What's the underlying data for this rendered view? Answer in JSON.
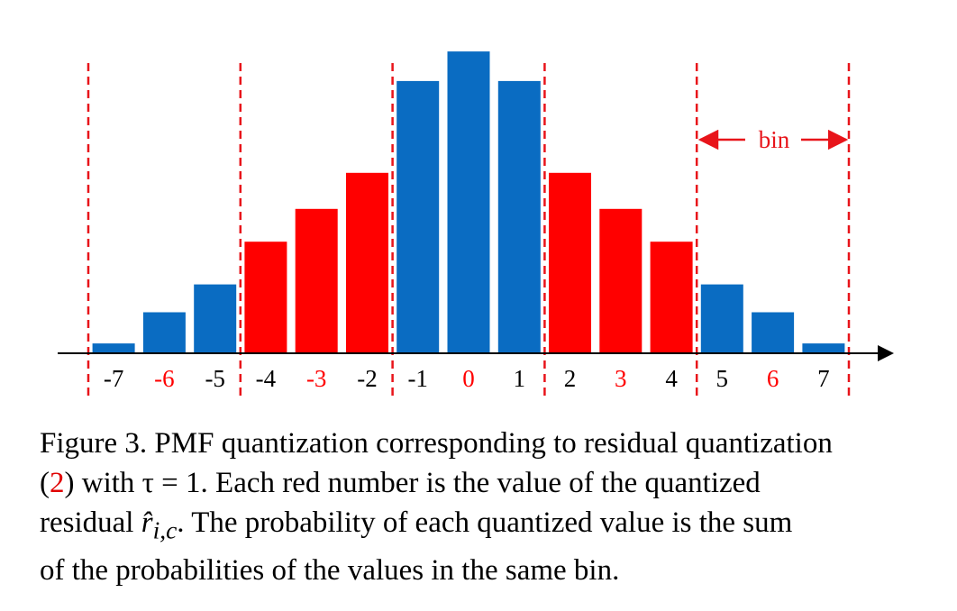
{
  "colors": {
    "blue": "#0a6cc2",
    "red": "#ff0000",
    "divider": "#e8141a",
    "axis": "#000000"
  },
  "chart_data": {
    "type": "bar",
    "categories": [
      "-7",
      "-6",
      "-5",
      "-4",
      "-3",
      "-2",
      "-1",
      "0",
      "1",
      "2",
      "3",
      "4",
      "5",
      "6",
      "7"
    ],
    "values": [
      0.03,
      0.125,
      0.21,
      0.34,
      0.44,
      0.55,
      0.83,
      0.92,
      0.83,
      0.55,
      0.44,
      0.34,
      0.21,
      0.125,
      0.03
    ],
    "bar_colors": [
      "blue",
      "blue",
      "blue",
      "red",
      "red",
      "red",
      "blue",
      "blue",
      "blue",
      "red",
      "red",
      "red",
      "blue",
      "blue",
      "blue"
    ],
    "red_tick_labels": [
      "-6",
      "-3",
      "0",
      "3",
      "6"
    ],
    "bins": [
      [
        -7,
        -5
      ],
      [
        -4,
        -2
      ],
      [
        -1,
        1
      ],
      [
        2,
        4
      ],
      [
        5,
        7
      ]
    ],
    "ylim": [
      0,
      1
    ],
    "annotation": "bin",
    "grid": false,
    "xlabel": "",
    "ylabel": ""
  },
  "caption": {
    "line1": "Figure 3. PMF quantization corresponding to residual quantization",
    "l2_open": "(",
    "l2_ref": "2",
    "l2_rest": ") with τ = 1.  Each red number is the value of the quantized",
    "l3_start": "residual ",
    "l3_sym": "r̂",
    "l3_sub": "i,c",
    "l3_rest": ".  The probability of each quantized value is the sum",
    "line4": "of the probabilities of the values in the same bin."
  }
}
